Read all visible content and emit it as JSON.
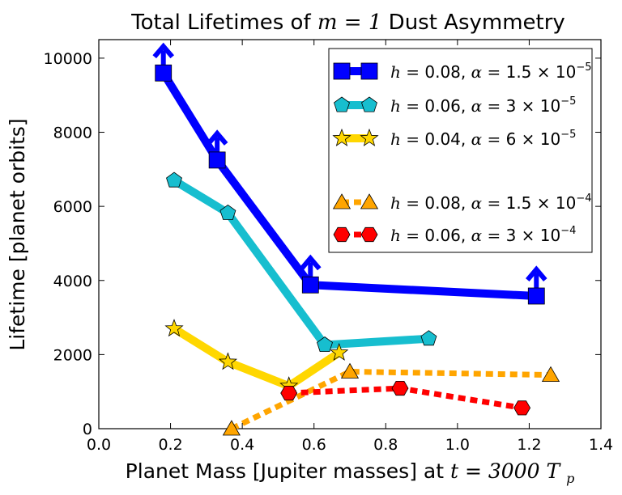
{
  "chart_data": {
    "type": "line",
    "title": "Total Lifetimes of",
    "title_math": "m = 1",
    "title_tail": "Dust Asymmetry",
    "xlabel": "Planet Mass [Jupiter masses] at",
    "xlabel_math": "t = 3000 T",
    "xlabel_sub": "p",
    "ylabel": "Lifetime [planet orbits]",
    "xlim": [
      0.0,
      1.4
    ],
    "ylim": [
      0,
      10500
    ],
    "xticks": [
      "0.0",
      "0.2",
      "0.4",
      "0.6",
      "0.8",
      "1.0",
      "1.2",
      "1.4"
    ],
    "yticks": [
      "0",
      "2000",
      "4000",
      "6000",
      "8000",
      "10000"
    ],
    "xtick_values": [
      0.0,
      0.2,
      0.4,
      0.6,
      0.8,
      1.0,
      1.2,
      1.4
    ],
    "ytick_values": [
      0,
      2000,
      4000,
      6000,
      8000,
      10000
    ],
    "grid": false,
    "legend_position": "top-right",
    "series": [
      {
        "name": "h = 0.08, α = 1.5 × 10⁻⁵",
        "label_h": "h = ",
        "label_hval": "0.08",
        "label_a": "α = ",
        "label_aval": "1.5 × 10",
        "label_exp": "−5",
        "color": "#0000ff",
        "marker": "square",
        "style": "solid",
        "lower_limit": true,
        "x": [
          0.18,
          0.33,
          0.59,
          1.22
        ],
        "y": [
          9600,
          7250,
          3880,
          3580
        ]
      },
      {
        "name": "h = 0.06, α = 3 × 10⁻⁵",
        "label_h": "h = ",
        "label_hval": "0.06",
        "label_a": "α = ",
        "label_aval": "3 × 10",
        "label_exp": "−5",
        "color": "#17becf",
        "marker": "pentagon",
        "style": "solid",
        "lower_limit": false,
        "x": [
          0.21,
          0.36,
          0.63,
          0.92
        ],
        "y": [
          6700,
          5820,
          2260,
          2430
        ]
      },
      {
        "name": "h = 0.04, α = 6 × 10⁻⁵",
        "label_h": "h = ",
        "label_hval": "0.04",
        "label_a": "α = ",
        "label_aval": "6 × 10",
        "label_exp": "−5",
        "color": "#ffd700",
        "marker": "star",
        "style": "solid",
        "lower_limit": false,
        "x": [
          0.21,
          0.36,
          0.53,
          0.67
        ],
        "y": [
          2700,
          1800,
          1150,
          2050
        ]
      },
      {
        "name": "h = 0.08, α = 1.5 × 10⁻⁴",
        "label_h": "h = ",
        "label_hval": "0.08",
        "label_a": "α = ",
        "label_aval": "1.5 × 10",
        "label_exp": "−4",
        "color": "#ffa500",
        "marker": "triangle",
        "style": "dashed",
        "lower_limit": false,
        "x": [
          0.37,
          0.7,
          1.26
        ],
        "y": [
          0,
          1540,
          1450
        ]
      },
      {
        "name": "h = 0.06, α = 3 × 10⁻⁴",
        "label_h": "h = ",
        "label_hval": "0.06",
        "label_a": "α = ",
        "label_aval": "3 × 10",
        "label_exp": "−4",
        "color": "#ff0000",
        "marker": "hexagon",
        "style": "dashed",
        "lower_limit": false,
        "x": [
          0.53,
          0.84,
          1.18
        ],
        "y": [
          960,
          1090,
          560
        ]
      }
    ]
  }
}
